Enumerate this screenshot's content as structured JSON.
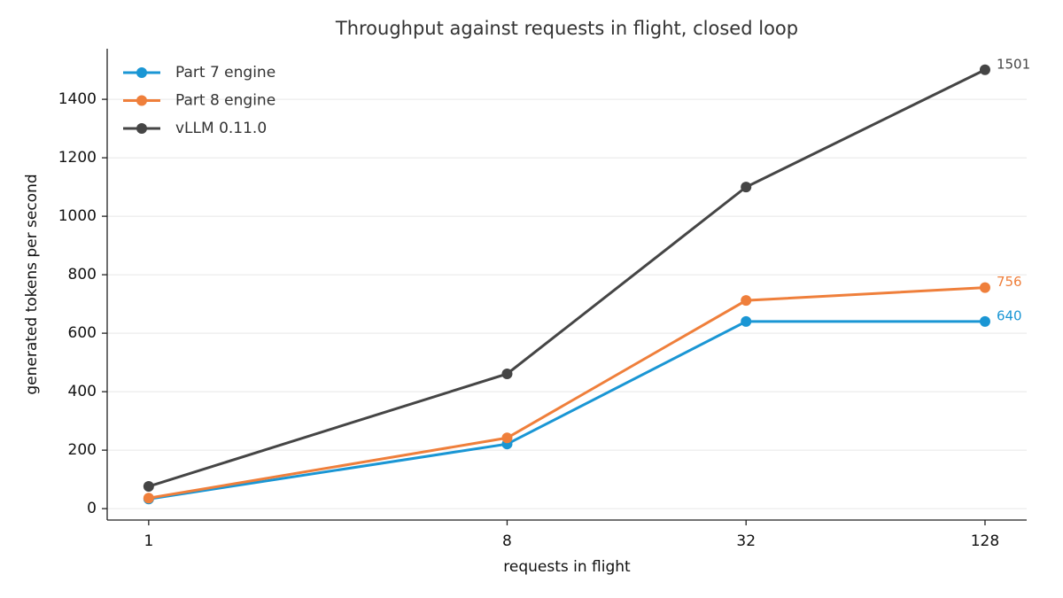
{
  "chart_data": {
    "type": "line",
    "title": "Throughput against requests in flight, closed loop",
    "x_label": "requests in flight",
    "y_label": "generated tokens per second",
    "x": [
      1,
      8,
      32,
      128
    ],
    "xscale": "log",
    "xlim": [
      0.786,
      163
    ],
    "xticks": [
      1,
      8,
      32,
      128
    ],
    "ylim": [
      -39,
      1573
    ],
    "yticks": [
      0,
      200,
      400,
      600,
      800,
      1000,
      1200,
      1400
    ],
    "grid": true,
    "legend": "upper-left",
    "series": [
      {
        "name": "Part 7 engine",
        "color": "#1a96d4",
        "values": [
          33,
          221,
          640,
          640
        ]
      },
      {
        "name": "Part 8 engine",
        "color": "#ef7f3b",
        "values": [
          36,
          242,
          712,
          756
        ]
      },
      {
        "name": "vLLM 0.11.0",
        "color": "#454545",
        "values": [
          76,
          461,
          1100,
          1501
        ]
      }
    ]
  }
}
